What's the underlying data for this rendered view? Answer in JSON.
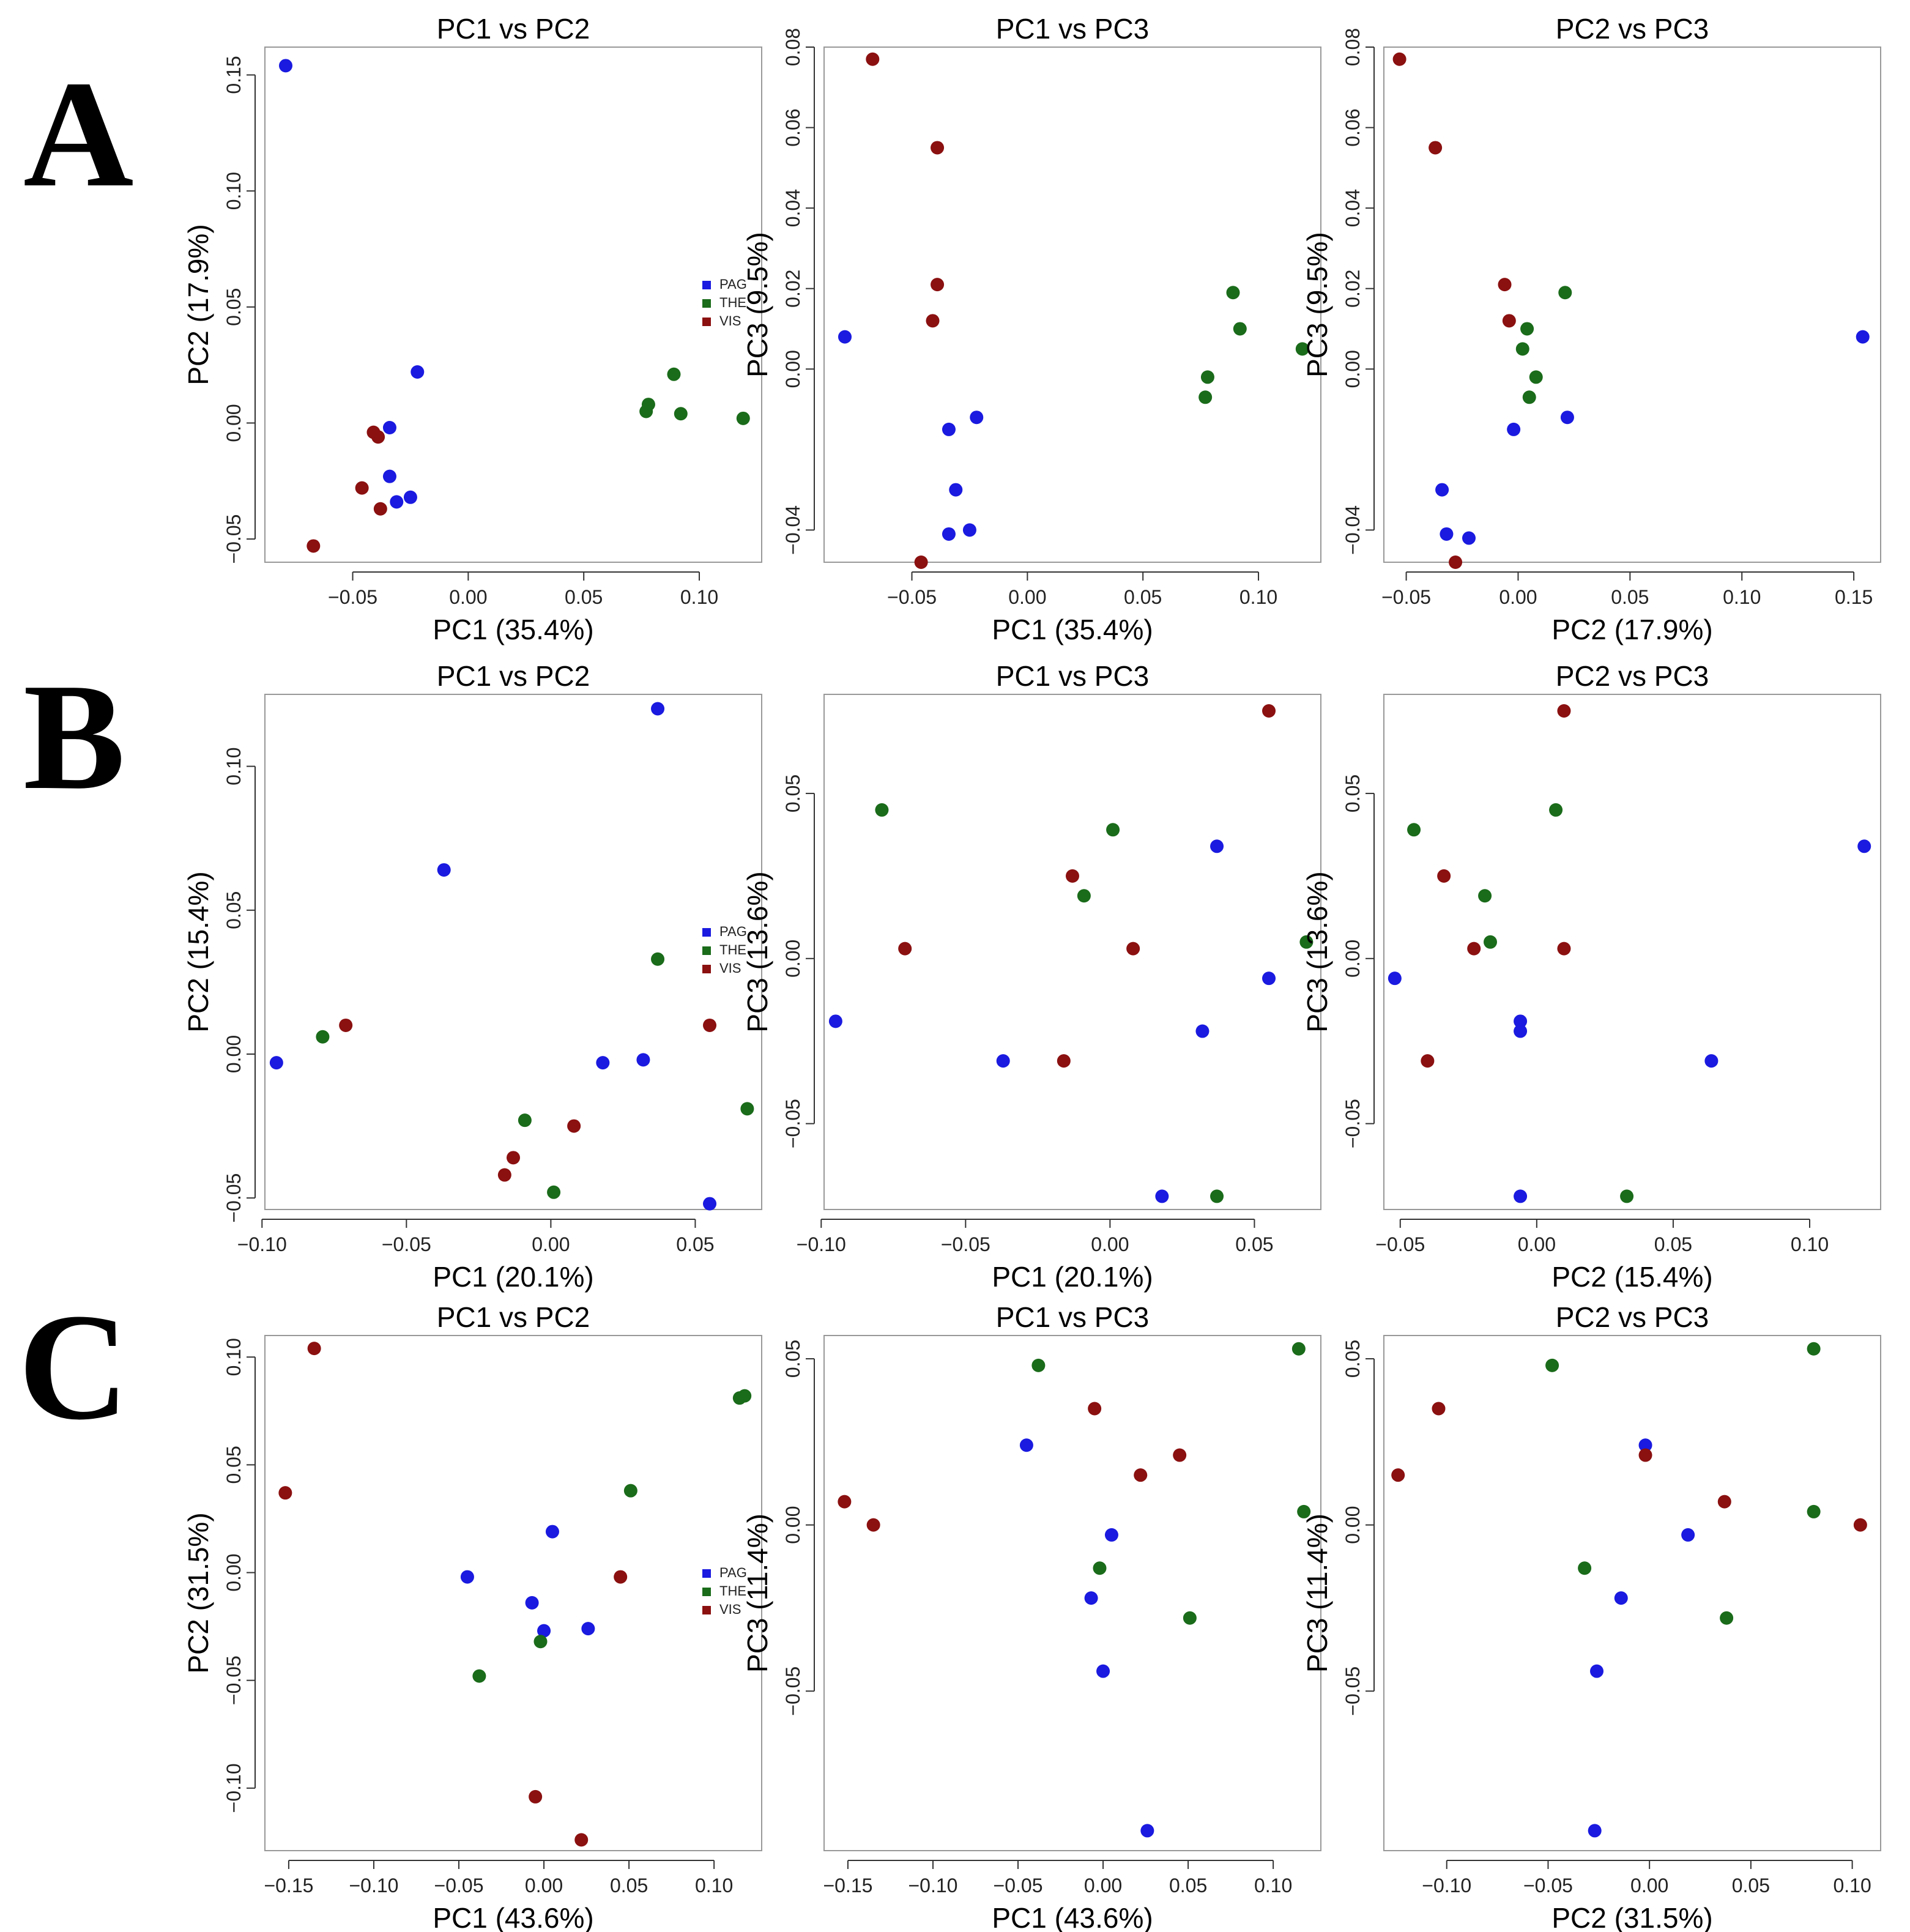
{
  "colors": {
    "PAG": "#1a1ae0",
    "THE": "#1a6b1a",
    "VIS": "#8b1010",
    "frame": "#999999",
    "text": "#000000"
  },
  "legend": [
    "PAG",
    "THE",
    "VIS"
  ],
  "row_labels": [
    "A",
    "B",
    "C"
  ],
  "chart_data": [
    {
      "type": "scatter",
      "panel": "A-1",
      "title": "PC1 vs PC2",
      "xlabel": "PC1 (35.4%)",
      "ylabel": "PC2 (17.9%)",
      "xlim": [
        -0.088,
        0.127
      ],
      "ylim": [
        -0.06,
        0.162
      ],
      "xticks": [
        -0.05,
        0.0,
        0.05,
        0.1
      ],
      "xtick_labels": [
        "−0.05",
        "0.00",
        "0.05",
        "0.10"
      ],
      "yticks": [
        -0.05,
        0.0,
        0.05,
        0.1,
        0.15
      ],
      "ytick_labels": [
        "−0.05",
        "0.00",
        "0.05",
        "0.10",
        "0.15"
      ],
      "legend": true,
      "points": [
        {
          "group": "PAG",
          "x": -0.079,
          "y": 0.154
        },
        {
          "group": "PAG",
          "x": -0.022,
          "y": 0.022
        },
        {
          "group": "PAG",
          "x": -0.034,
          "y": -0.002
        },
        {
          "group": "PAG",
          "x": -0.034,
          "y": -0.023
        },
        {
          "group": "PAG",
          "x": -0.031,
          "y": -0.034
        },
        {
          "group": "PAG",
          "x": -0.025,
          "y": -0.032
        },
        {
          "group": "THE",
          "x": 0.089,
          "y": 0.021
        },
        {
          "group": "THE",
          "x": 0.078,
          "y": 0.008
        },
        {
          "group": "THE",
          "x": 0.077,
          "y": 0.005
        },
        {
          "group": "THE",
          "x": 0.092,
          "y": 0.004
        },
        {
          "group": "THE",
          "x": 0.119,
          "y": 0.002
        },
        {
          "group": "VIS",
          "x": -0.041,
          "y": -0.004
        },
        {
          "group": "VIS",
          "x": -0.039,
          "y": -0.006
        },
        {
          "group": "VIS",
          "x": -0.046,
          "y": -0.028
        },
        {
          "group": "VIS",
          "x": -0.038,
          "y": -0.037
        },
        {
          "group": "VIS",
          "x": -0.067,
          "y": -0.053
        }
      ]
    },
    {
      "type": "scatter",
      "panel": "A-2",
      "title": "PC1 vs PC3",
      "xlabel": "PC1 (35.4%)",
      "ylabel": "PC3 (9.5%)",
      "xlim": [
        -0.088,
        0.127
      ],
      "ylim": [
        -0.048,
        0.08
      ],
      "xticks": [
        -0.05,
        0.0,
        0.05,
        0.1
      ],
      "xtick_labels": [
        "−0.05",
        "0.00",
        "0.05",
        "0.10"
      ],
      "yticks": [
        -0.04,
        0.0,
        0.02,
        0.04,
        0.06,
        0.08
      ],
      "ytick_labels": [
        "−0.04",
        "0.00",
        "0.02",
        "0.04",
        "0.06",
        "0.08"
      ],
      "legend": false,
      "points": [
        {
          "group": "PAG",
          "x": -0.079,
          "y": 0.008
        },
        {
          "group": "PAG",
          "x": -0.022,
          "y": -0.012
        },
        {
          "group": "PAG",
          "x": -0.034,
          "y": -0.015
        },
        {
          "group": "PAG",
          "x": -0.031,
          "y": -0.03
        },
        {
          "group": "PAG",
          "x": -0.034,
          "y": -0.041
        },
        {
          "group": "PAG",
          "x": -0.025,
          "y": -0.04
        },
        {
          "group": "THE",
          "x": 0.089,
          "y": 0.019
        },
        {
          "group": "THE",
          "x": 0.092,
          "y": 0.01
        },
        {
          "group": "THE",
          "x": 0.119,
          "y": 0.005
        },
        {
          "group": "THE",
          "x": 0.078,
          "y": -0.002
        },
        {
          "group": "THE",
          "x": 0.077,
          "y": -0.007
        },
        {
          "group": "VIS",
          "x": -0.067,
          "y": 0.077
        },
        {
          "group": "VIS",
          "x": -0.039,
          "y": 0.055
        },
        {
          "group": "VIS",
          "x": -0.039,
          "y": 0.021
        },
        {
          "group": "VIS",
          "x": -0.041,
          "y": 0.012
        },
        {
          "group": "VIS",
          "x": -0.046,
          "y": -0.048
        }
      ]
    },
    {
      "type": "scatter",
      "panel": "A-3",
      "title": "PC2 vs PC3",
      "xlabel": "PC2 (17.9%)",
      "ylabel": "PC3 (9.5%)",
      "xlim": [
        -0.06,
        0.162
      ],
      "ylim": [
        -0.048,
        0.08
      ],
      "xticks": [
        -0.05,
        0.0,
        0.05,
        0.1,
        0.15
      ],
      "xtick_labels": [
        "−0.05",
        "0.00",
        "0.05",
        "0.10",
        "0.15"
      ],
      "yticks": [
        -0.04,
        0.0,
        0.02,
        0.04,
        0.06,
        0.08
      ],
      "ytick_labels": [
        "−0.04",
        "0.00",
        "0.02",
        "0.04",
        "0.06",
        "0.08"
      ],
      "legend": false,
      "points": [
        {
          "group": "PAG",
          "x": 0.154,
          "y": 0.008
        },
        {
          "group": "PAG",
          "x": 0.022,
          "y": -0.012
        },
        {
          "group": "PAG",
          "x": -0.002,
          "y": -0.015
        },
        {
          "group": "PAG",
          "x": -0.034,
          "y": -0.03
        },
        {
          "group": "PAG",
          "x": -0.032,
          "y": -0.041
        },
        {
          "group": "PAG",
          "x": -0.022,
          "y": -0.042
        },
        {
          "group": "THE",
          "x": 0.021,
          "y": 0.019
        },
        {
          "group": "THE",
          "x": 0.004,
          "y": 0.01
        },
        {
          "group": "THE",
          "x": 0.002,
          "y": 0.005
        },
        {
          "group": "THE",
          "x": 0.008,
          "y": -0.002
        },
        {
          "group": "THE",
          "x": 0.005,
          "y": -0.007
        },
        {
          "group": "VIS",
          "x": -0.053,
          "y": 0.077
        },
        {
          "group": "VIS",
          "x": -0.037,
          "y": 0.055
        },
        {
          "group": "VIS",
          "x": -0.006,
          "y": 0.021
        },
        {
          "group": "VIS",
          "x": -0.004,
          "y": 0.012
        },
        {
          "group": "VIS",
          "x": -0.028,
          "y": -0.048
        }
      ]
    },
    {
      "type": "scatter",
      "panel": "B-1",
      "title": "PC1 vs PC2",
      "xlabel": "PC1 (20.1%)",
      "ylabel": "PC2 (15.4%)",
      "xlim": [
        -0.099,
        0.073
      ],
      "ylim": [
        -0.054,
        0.125
      ],
      "xticks": [
        -0.1,
        -0.05,
        0.0,
        0.05
      ],
      "xtick_labels": [
        "−0.10",
        "−0.05",
        "0.00",
        "0.05"
      ],
      "yticks": [
        -0.05,
        0.0,
        0.05,
        0.1
      ],
      "ytick_labels": [
        "−0.05",
        "0.00",
        "0.05",
        "0.10"
      ],
      "legend": true,
      "points": [
        {
          "group": "PAG",
          "x": 0.037,
          "y": 0.12
        },
        {
          "group": "PAG",
          "x": -0.037,
          "y": 0.064
        },
        {
          "group": "PAG",
          "x": 0.032,
          "y": -0.002
        },
        {
          "group": "PAG",
          "x": 0.018,
          "y": -0.003
        },
        {
          "group": "PAG",
          "x": -0.095,
          "y": -0.003
        },
        {
          "group": "PAG",
          "x": 0.055,
          "y": -0.052
        },
        {
          "group": "THE",
          "x": 0.037,
          "y": 0.033
        },
        {
          "group": "THE",
          "x": -0.079,
          "y": 0.006
        },
        {
          "group": "THE",
          "x": 0.068,
          "y": -0.019
        },
        {
          "group": "THE",
          "x": -0.009,
          "y": -0.023
        },
        {
          "group": "THE",
          "x": 0.001,
          "y": -0.048
        },
        {
          "group": "VIS",
          "x": -0.071,
          "y": 0.01
        },
        {
          "group": "VIS",
          "x": 0.055,
          "y": 0.01
        },
        {
          "group": "VIS",
          "x": 0.008,
          "y": -0.025
        },
        {
          "group": "VIS",
          "x": -0.013,
          "y": -0.036
        },
        {
          "group": "VIS",
          "x": -0.016,
          "y": -0.042
        }
      ]
    },
    {
      "type": "scatter",
      "panel": "B-2",
      "title": "PC1 vs PC3",
      "xlabel": "PC1 (20.1%)",
      "ylabel": "PC3 (13.6%)",
      "xlim": [
        -0.099,
        0.073
      ],
      "ylim": [
        -0.076,
        0.08
      ],
      "xticks": [
        -0.1,
        -0.05,
        0.0,
        0.05
      ],
      "xtick_labels": [
        "−0.10",
        "−0.05",
        "0.00",
        "0.05"
      ],
      "yticks": [
        -0.05,
        0.0,
        0.05
      ],
      "ytick_labels": [
        "−0.05",
        "0.00",
        "0.05"
      ],
      "legend": false,
      "points": [
        {
          "group": "PAG",
          "x": 0.037,
          "y": 0.034
        },
        {
          "group": "PAG",
          "x": 0.055,
          "y": -0.006
        },
        {
          "group": "PAG",
          "x": -0.095,
          "y": -0.019
        },
        {
          "group": "PAG",
          "x": 0.032,
          "y": -0.022
        },
        {
          "group": "PAG",
          "x": -0.037,
          "y": -0.031
        },
        {
          "group": "PAG",
          "x": 0.018,
          "y": -0.072
        },
        {
          "group": "THE",
          "x": -0.079,
          "y": 0.045
        },
        {
          "group": "THE",
          "x": 0.001,
          "y": 0.039
        },
        {
          "group": "THE",
          "x": -0.009,
          "y": 0.019
        },
        {
          "group": "THE",
          "x": 0.068,
          "y": 0.005
        },
        {
          "group": "THE",
          "x": 0.037,
          "y": -0.072
        },
        {
          "group": "VIS",
          "x": 0.055,
          "y": 0.075
        },
        {
          "group": "VIS",
          "x": -0.013,
          "y": 0.025
        },
        {
          "group": "VIS",
          "x": -0.071,
          "y": 0.003
        },
        {
          "group": "VIS",
          "x": 0.008,
          "y": 0.003
        },
        {
          "group": "VIS",
          "x": -0.016,
          "y": -0.031
        }
      ]
    },
    {
      "type": "scatter",
      "panel": "B-3",
      "title": "PC2 vs PC3",
      "xlabel": "PC2 (15.4%)",
      "ylabel": "PC3 (13.6%)",
      "xlim": [
        -0.056,
        0.126
      ],
      "ylim": [
        -0.076,
        0.08
      ],
      "xticks": [
        -0.05,
        0.0,
        0.05,
        0.1
      ],
      "xtick_labels": [
        "−0.05",
        "0.00",
        "0.05",
        "0.10"
      ],
      "yticks": [
        -0.05,
        0.0,
        0.05
      ],
      "ytick_labels": [
        "−0.05",
        "0.00",
        "0.05"
      ],
      "legend": false,
      "points": [
        {
          "group": "PAG",
          "x": 0.12,
          "y": 0.034
        },
        {
          "group": "PAG",
          "x": -0.052,
          "y": -0.006
        },
        {
          "group": "PAG",
          "x": -0.006,
          "y": -0.019
        },
        {
          "group": "PAG",
          "x": -0.006,
          "y": -0.022
        },
        {
          "group": "PAG",
          "x": 0.064,
          "y": -0.031
        },
        {
          "group": "PAG",
          "x": -0.006,
          "y": -0.072
        },
        {
          "group": "THE",
          "x": -0.045,
          "y": 0.039
        },
        {
          "group": "THE",
          "x": 0.007,
          "y": 0.045
        },
        {
          "group": "THE",
          "x": -0.019,
          "y": 0.019
        },
        {
          "group": "THE",
          "x": -0.017,
          "y": 0.005
        },
        {
          "group": "THE",
          "x": 0.033,
          "y": -0.072
        },
        {
          "group": "VIS",
          "x": 0.01,
          "y": 0.075
        },
        {
          "group": "VIS",
          "x": -0.034,
          "y": 0.025
        },
        {
          "group": "VIS",
          "x": -0.023,
          "y": 0.003
        },
        {
          "group": "VIS",
          "x": 0.01,
          "y": 0.003
        },
        {
          "group": "VIS",
          "x": -0.04,
          "y": -0.031
        }
      ]
    },
    {
      "type": "scatter",
      "panel": "C-1",
      "title": "PC1 vs PC2",
      "xlabel": "PC1 (43.6%)",
      "ylabel": "PC2 (31.5%)",
      "xlim": [
        -0.164,
        0.128
      ],
      "ylim": [
        -0.129,
        0.11
      ],
      "xticks": [
        -0.15,
        -0.1,
        -0.05,
        0.0,
        0.05,
        0.1
      ],
      "xtick_labels": [
        "−0.15",
        "−0.10",
        "−0.05",
        "0.00",
        "0.05",
        "0.10"
      ],
      "yticks": [
        -0.1,
        -0.05,
        0.0,
        0.05,
        0.1
      ],
      "ytick_labels": [
        "−0.10",
        "−0.05",
        "0.00",
        "0.05",
        "0.10"
      ],
      "legend": true,
      "points": [
        {
          "group": "PAG",
          "x": 0.005,
          "y": 0.019
        },
        {
          "group": "PAG",
          "x": -0.045,
          "y": -0.002
        },
        {
          "group": "PAG",
          "x": -0.007,
          "y": -0.014
        },
        {
          "group": "PAG",
          "x": -0.0,
          "y": -0.027
        },
        {
          "group": "PAG",
          "x": 0.026,
          "y": -0.026
        },
        {
          "group": "THE",
          "x": 0.115,
          "y": 0.081
        },
        {
          "group": "THE",
          "x": 0.118,
          "y": 0.082
        },
        {
          "group": "THE",
          "x": 0.051,
          "y": 0.038
        },
        {
          "group": "THE",
          "x": -0.002,
          "y": -0.032
        },
        {
          "group": "THE",
          "x": -0.038,
          "y": -0.048
        },
        {
          "group": "VIS",
          "x": -0.135,
          "y": 0.104
        },
        {
          "group": "VIS",
          "x": -0.152,
          "y": 0.037
        },
        {
          "group": "VIS",
          "x": 0.045,
          "y": -0.002
        },
        {
          "group": "VIS",
          "x": -0.005,
          "y": -0.104
        },
        {
          "group": "VIS",
          "x": 0.022,
          "y": -0.124
        }
      ]
    },
    {
      "type": "scatter",
      "panel": "C-2",
      "title": "PC1 vs PC3",
      "xlabel": "PC1 (43.6%)",
      "ylabel": "PC3 (11.4%)",
      "xlim": [
        -0.164,
        0.128
      ],
      "ylim": [
        -0.098,
        0.057
      ],
      "xticks": [
        -0.15,
        -0.1,
        -0.05,
        0.0,
        0.05,
        0.1
      ],
      "xtick_labels": [
        "−0.15",
        "−0.10",
        "−0.05",
        "0.00",
        "0.05",
        "0.10"
      ],
      "yticks": [
        -0.05,
        0.0,
        0.05
      ],
      "ytick_labels": [
        "−0.05",
        "0.00",
        "0.05"
      ],
      "legend": false,
      "points": [
        {
          "group": "PAG",
          "x": -0.045,
          "y": 0.024
        },
        {
          "group": "PAG",
          "x": 0.005,
          "y": -0.003
        },
        {
          "group": "PAG",
          "x": -0.007,
          "y": -0.022
        },
        {
          "group": "PAG",
          "x": -0.0,
          "y": -0.044
        },
        {
          "group": "PAG",
          "x": 0.026,
          "y": -0.092
        },
        {
          "group": "THE",
          "x": -0.038,
          "y": 0.048
        },
        {
          "group": "THE",
          "x": 0.115,
          "y": 0.053
        },
        {
          "group": "THE",
          "x": 0.118,
          "y": 0.004
        },
        {
          "group": "THE",
          "x": -0.002,
          "y": -0.013
        },
        {
          "group": "THE",
          "x": 0.051,
          "y": -0.028
        },
        {
          "group": "VIS",
          "x": -0.005,
          "y": 0.035
        },
        {
          "group": "VIS",
          "x": 0.045,
          "y": 0.021
        },
        {
          "group": "VIS",
          "x": 0.022,
          "y": 0.015
        },
        {
          "group": "VIS",
          "x": -0.152,
          "y": 0.007
        },
        {
          "group": "VIS",
          "x": -0.135,
          "y": 0.0
        }
      ]
    },
    {
      "type": "scatter",
      "panel": "C-3",
      "title": "PC2 vs PC3",
      "xlabel": "PC2 (31.5%)",
      "ylabel": "PC3 (11.4%)",
      "xlim": [
        -0.131,
        0.114
      ],
      "ylim": [
        -0.098,
        0.057
      ],
      "xticks": [
        -0.1,
        -0.05,
        0.0,
        0.05,
        0.1
      ],
      "xtick_labels": [
        "−0.10",
        "−0.05",
        "0.00",
        "0.05",
        "0.10"
      ],
      "yticks": [
        -0.05,
        0.0,
        0.05
      ],
      "ytick_labels": [
        "−0.05",
        "0.00",
        "0.05"
      ],
      "legend": false,
      "points": [
        {
          "group": "PAG",
          "x": -0.002,
          "y": 0.024
        },
        {
          "group": "PAG",
          "x": 0.019,
          "y": -0.003
        },
        {
          "group": "PAG",
          "x": -0.014,
          "y": -0.022
        },
        {
          "group": "PAG",
          "x": -0.026,
          "y": -0.044
        },
        {
          "group": "PAG",
          "x": -0.027,
          "y": -0.092
        },
        {
          "group": "THE",
          "x": -0.048,
          "y": 0.048
        },
        {
          "group": "THE",
          "x": 0.081,
          "y": 0.053
        },
        {
          "group": "THE",
          "x": 0.081,
          "y": 0.004
        },
        {
          "group": "THE",
          "x": -0.032,
          "y": -0.013
        },
        {
          "group": "THE",
          "x": 0.038,
          "y": -0.028
        },
        {
          "group": "VIS",
          "x": -0.104,
          "y": 0.035
        },
        {
          "group": "VIS",
          "x": -0.002,
          "y": 0.021
        },
        {
          "group": "VIS",
          "x": -0.124,
          "y": 0.015
        },
        {
          "group": "VIS",
          "x": 0.037,
          "y": 0.007
        },
        {
          "group": "VIS",
          "x": 0.104,
          "y": 0.0
        }
      ]
    }
  ]
}
